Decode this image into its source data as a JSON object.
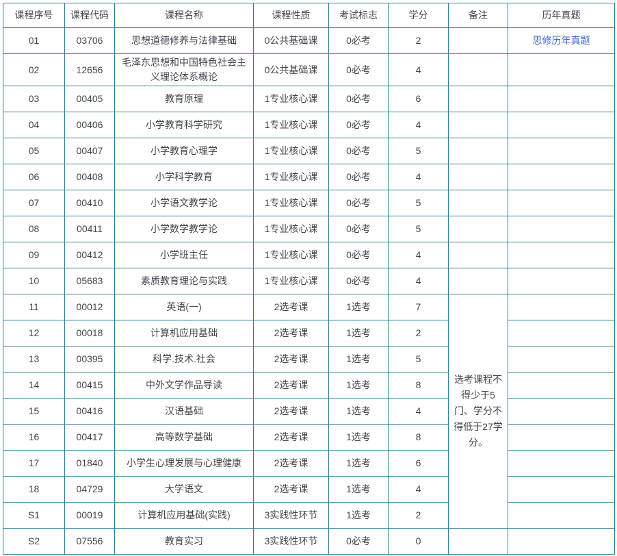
{
  "table": {
    "headers": [
      "课程序号",
      "课程代码",
      "课程名称",
      "课程性质",
      "考试标志",
      "学分",
      "备注",
      "历年真题"
    ],
    "rows": [
      {
        "seq": "01",
        "code": "03706",
        "name": "思想道德修养与法律基础",
        "nature": "0公共基础课",
        "exam": "0必考",
        "credits": "2",
        "paper": "思修历年真题"
      },
      {
        "seq": "02",
        "code": "12656",
        "name": "毛泽东思想和中国特色社会主义理论体系概论",
        "nature": "0公共基础课",
        "exam": "0必考",
        "credits": "4",
        "paper": ""
      },
      {
        "seq": "03",
        "code": "00405",
        "name": "教育原理",
        "nature": "1专业核心课",
        "exam": "0必考",
        "credits": "6",
        "paper": ""
      },
      {
        "seq": "04",
        "code": "00406",
        "name": "小学教育科学研究",
        "nature": "1专业核心课",
        "exam": "0必考",
        "credits": "4",
        "paper": ""
      },
      {
        "seq": "05",
        "code": "00407",
        "name": "小学教育心理学",
        "nature": "1专业核心课",
        "exam": "0必考",
        "credits": "5",
        "paper": ""
      },
      {
        "seq": "06",
        "code": "00408",
        "name": "小学科学教育",
        "nature": "1专业核心课",
        "exam": "0必考",
        "credits": "4",
        "paper": ""
      },
      {
        "seq": "07",
        "code": "00410",
        "name": "小学语文教学论",
        "nature": "1专业核心课",
        "exam": "0必考",
        "credits": "5",
        "paper": ""
      },
      {
        "seq": "08",
        "code": "00411",
        "name": "小学数学教学论",
        "nature": "1专业核心课",
        "exam": "0必考",
        "credits": "5",
        "paper": ""
      },
      {
        "seq": "09",
        "code": "00412",
        "name": "小学班主任",
        "nature": "1专业核心课",
        "exam": "0必考",
        "credits": "4",
        "paper": ""
      },
      {
        "seq": "10",
        "code": "05683",
        "name": "素质教育理论与实践",
        "nature": "1专业核心课",
        "exam": "0必考",
        "credits": "4",
        "paper": ""
      },
      {
        "seq": "11",
        "code": "00012",
        "name": "英语(一)",
        "nature": "2选考课",
        "exam": "1选考",
        "credits": "7",
        "paper": ""
      },
      {
        "seq": "12",
        "code": "00018",
        "name": "计算机应用基础",
        "nature": "2选考课",
        "exam": "1选考",
        "credits": "2",
        "paper": ""
      },
      {
        "seq": "13",
        "code": "00395",
        "name": "科学.技术.社会",
        "nature": "2选考课",
        "exam": "1选考",
        "credits": "5",
        "paper": ""
      },
      {
        "seq": "14",
        "code": "00415",
        "name": "中外文学作品导读",
        "nature": "2选考课",
        "exam": "1选考",
        "credits": "8",
        "paper": ""
      },
      {
        "seq": "15",
        "code": "00416",
        "name": "汉语基础",
        "nature": "2选考课",
        "exam": "1选考",
        "credits": "4",
        "paper": ""
      },
      {
        "seq": "16",
        "code": "00417",
        "name": "高等数学基础",
        "nature": "2选考课",
        "exam": "1选考",
        "credits": "8",
        "paper": ""
      },
      {
        "seq": "17",
        "code": "01840",
        "name": "小学生心理发展与心理健康",
        "nature": "2选考课",
        "exam": "1选考",
        "credits": "6",
        "paper": ""
      },
      {
        "seq": "18",
        "code": "04729",
        "name": "大学语文",
        "nature": "2选考课",
        "exam": "1选考",
        "credits": "4",
        "paper": ""
      },
      {
        "seq": "S1",
        "code": "00019",
        "name": "计算机应用基础(实践)",
        "nature": "3实践性环节",
        "exam": "1选考",
        "credits": "2",
        "paper": ""
      },
      {
        "seq": "S2",
        "code": "07556",
        "name": "教育实习",
        "nature": "3实践性环节",
        "exam": "0必考",
        "credits": "0",
        "paper": ""
      }
    ],
    "note_merge": {
      "text": "选考课程不得少于5门、学分不得低于27学分。",
      "start_seq": "11",
      "end_seq": "S1",
      "row_span": 9
    },
    "colors": {
      "border": "#2e7d98",
      "text": "#42464e",
      "link": "#3c64d2"
    }
  }
}
